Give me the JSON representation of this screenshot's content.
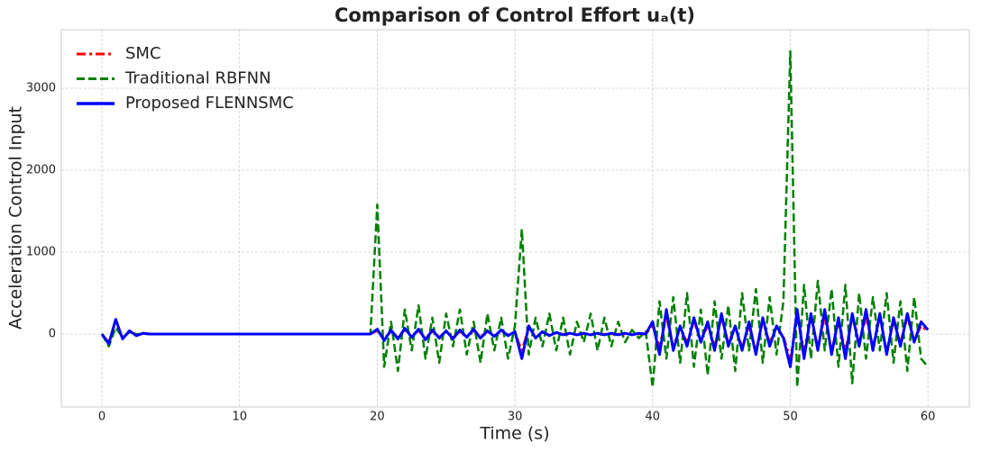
{
  "chart_data": {
    "type": "line",
    "title": "Comparison of Control Effort uₐ(t)",
    "x_label": "Time (s)",
    "y_label": "Acceleration Control Input",
    "xlim": [
      -2.95,
      63
    ],
    "xticks": [
      0,
      10,
      20,
      30,
      40,
      50,
      60
    ],
    "ylim": [
      -890,
      3714
    ],
    "yticks": [
      0,
      1000,
      2000,
      3000
    ],
    "grid": true,
    "legend": "upper left",
    "x": [
      0,
      0.5,
      1,
      1.5,
      2,
      2.5,
      3,
      3.5,
      4,
      4.5,
      5,
      5.5,
      6,
      6.5,
      7,
      7.5,
      8,
      8.5,
      9,
      9.5,
      10,
      10.5,
      11,
      11.5,
      12,
      12.5,
      13,
      13.5,
      14,
      14.5,
      15,
      15.5,
      16,
      16.5,
      17,
      17.5,
      18,
      18.5,
      19,
      19.5,
      20,
      20.5,
      21,
      21.5,
      22,
      22.5,
      23,
      23.5,
      24,
      24.5,
      25,
      25.5,
      26,
      26.5,
      27,
      27.5,
      28,
      28.5,
      29,
      29.5,
      30,
      30.5,
      31,
      31.5,
      32,
      32.5,
      33,
      33.5,
      34,
      34.5,
      35,
      35.5,
      36,
      36.5,
      37,
      37.5,
      38,
      38.5,
      39,
      39.5,
      40,
      40.5,
      41,
      41.5,
      42,
      42.5,
      43,
      43.5,
      44,
      44.5,
      45,
      45.5,
      46,
      46.5,
      47,
      47.5,
      48,
      48.5,
      49,
      49.5,
      50,
      50.5,
      51,
      51.5,
      52,
      52.5,
      53,
      53.5,
      54,
      54.5,
      55,
      55.5,
      56,
      56.5,
      57,
      57.5,
      58,
      58.5,
      59,
      59.5,
      60
    ],
    "series": [
      {
        "name": "SMC",
        "color": "#ff0000",
        "dash": "dashdot",
        "values": [
          0,
          -100,
          150,
          -50,
          30,
          -10,
          5,
          0,
          0,
          0,
          0,
          0,
          0,
          0,
          0,
          0,
          0,
          0,
          0,
          0,
          0,
          0,
          0,
          0,
          0,
          0,
          0,
          0,
          0,
          0,
          0,
          0,
          0,
          0,
          0,
          0,
          0,
          0,
          0,
          0,
          40,
          -50,
          30,
          -40,
          50,
          -30,
          40,
          -50,
          30,
          -30,
          30,
          -40,
          30,
          -30,
          40,
          -30,
          30,
          -20,
          30,
          -10,
          20,
          -200,
          80,
          -40,
          20,
          -10,
          10,
          0,
          0,
          0,
          0,
          0,
          0,
          0,
          0,
          0,
          0,
          0,
          0,
          0,
          100,
          -150,
          200,
          -150,
          80,
          -100,
          150,
          -80,
          100,
          -150,
          200,
          -100,
          80,
          -150,
          100,
          -200,
          150,
          -100,
          80,
          -30,
          -300,
          200,
          -200,
          200,
          -150,
          200,
          -200,
          150,
          -200,
          200,
          -100,
          200,
          -150,
          200,
          -200,
          150,
          -100,
          200,
          -80,
          100,
          30
        ]
      },
      {
        "name": "Traditional RBFNN",
        "color": "#008000",
        "dash": "dashed",
        "values": [
          0,
          -150,
          80,
          -40,
          20,
          0,
          0,
          0,
          0,
          0,
          0,
          0,
          0,
          0,
          0,
          0,
          0,
          0,
          0,
          0,
          0,
          0,
          0,
          0,
          0,
          0,
          0,
          0,
          0,
          0,
          0,
          0,
          0,
          0,
          0,
          0,
          0,
          0,
          0,
          0,
          1580,
          -400,
          150,
          -450,
          300,
          -200,
          350,
          -300,
          200,
          -350,
          250,
          -150,
          300,
          -250,
          150,
          -350,
          250,
          -200,
          200,
          -300,
          100,
          1280,
          -250,
          200,
          -150,
          250,
          -200,
          200,
          -250,
          150,
          -100,
          250,
          -200,
          200,
          -150,
          150,
          -100,
          50,
          -50,
          30,
          -650,
          400,
          -300,
          450,
          -350,
          500,
          -400,
          300,
          -500,
          400,
          -300,
          350,
          -450,
          500,
          -200,
          550,
          -350,
          450,
          -250,
          400,
          3450,
          -650,
          600,
          -300,
          650,
          -200,
          550,
          -400,
          600,
          -600,
          500,
          -300,
          450,
          -200,
          500,
          -350,
          400,
          -450,
          450,
          -300,
          -400
        ]
      },
      {
        "name": "Proposed FLENNSMC",
        "color": "#0000ff",
        "dash": "solid",
        "values": [
          0,
          -120,
          180,
          -60,
          40,
          -20,
          10,
          0,
          0,
          0,
          0,
          0,
          0,
          0,
          0,
          0,
          0,
          0,
          0,
          0,
          0,
          0,
          0,
          0,
          0,
          0,
          0,
          0,
          0,
          0,
          0,
          0,
          0,
          0,
          0,
          0,
          0,
          0,
          0,
          0,
          60,
          -80,
          50,
          -60,
          70,
          -40,
          60,
          -70,
          50,
          -50,
          40,
          -60,
          50,
          -40,
          60,
          -50,
          40,
          -30,
          50,
          -20,
          30,
          -300,
          100,
          -50,
          30,
          -20,
          20,
          -10,
          10,
          -10,
          10,
          -10,
          10,
          -10,
          10,
          -10,
          10,
          -10,
          10,
          0,
          150,
          -250,
          300,
          -200,
          100,
          -150,
          200,
          -100,
          150,
          -200,
          250,
          -150,
          100,
          -200,
          150,
          -250,
          200,
          -150,
          100,
          -50,
          -400,
          300,
          -300,
          250,
          -200,
          300,
          -250,
          200,
          -300,
          250,
          -150,
          300,
          -200,
          250,
          -250,
          200,
          -150,
          250,
          -100,
          150,
          50
        ]
      }
    ]
  }
}
